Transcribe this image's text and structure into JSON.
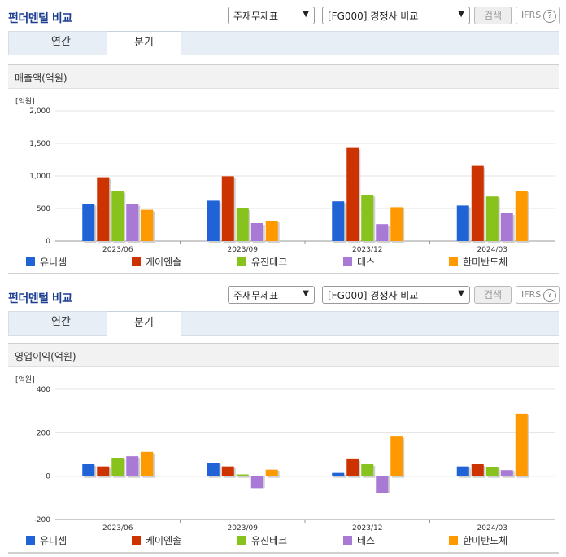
{
  "panels": [
    {
      "title": "펀더멘털 비교",
      "select1": "주재무제표",
      "select2": "[FG000] 경쟁사 비교",
      "search_label": "검색",
      "ifrs_label": "IFRS",
      "ifrs_help": "?",
      "tabs": [
        {
          "label": "연간",
          "active": false
        },
        {
          "label": "분기",
          "active": true
        }
      ],
      "metric_label": "매출액(억원)",
      "unit_label": "[억원]",
      "chart_data": {
        "type": "bar",
        "title": "매출액(억원)",
        "ylabel": "[억원]",
        "categories": [
          "2023/06",
          "2023/09",
          "2023/12",
          "2024/03"
        ],
        "ylim": [
          0,
          2000
        ],
        "yticks": [
          0,
          500,
          1000,
          1500,
          2000
        ],
        "ytick_labels": [
          "0",
          "500",
          "1,000",
          "1,500",
          "2,000"
        ],
        "grid": true,
        "legend_position": "bottom",
        "series": [
          {
            "name": "유니셈",
            "color": "#1f63d6",
            "values": [
              570,
              620,
              610,
              545
            ]
          },
          {
            "name": "케이엔솔",
            "color": "#cc3300",
            "values": [
              980,
              995,
              1430,
              1155
            ]
          },
          {
            "name": "유진테크",
            "color": "#88c21c",
            "values": [
              770,
              500,
              710,
              685
            ]
          },
          {
            "name": "테스",
            "color": "#a87ad6",
            "values": [
              570,
              275,
              260,
              425
            ]
          },
          {
            "name": "한미반도체",
            "color": "#ff9900",
            "values": [
              480,
              310,
              520,
              775
            ]
          }
        ]
      }
    },
    {
      "title": "펀더멘털 비교",
      "select1": "주재무제표",
      "select2": "[FG000] 경쟁사 비교",
      "search_label": "검색",
      "ifrs_label": "IFRS",
      "ifrs_help": "?",
      "tabs": [
        {
          "label": "연간",
          "active": false
        },
        {
          "label": "분기",
          "active": true
        }
      ],
      "metric_label": "영업이익(억원)",
      "unit_label": "[억원]",
      "chart_data": {
        "type": "bar",
        "title": "영업이익(억원)",
        "ylabel": "[억원]",
        "categories": [
          "2023/06",
          "2023/09",
          "2023/12",
          "2024/03"
        ],
        "ylim": [
          -200,
          400
        ],
        "yticks": [
          -200,
          0,
          200,
          400
        ],
        "ytick_labels": [
          "-200",
          "0",
          "200",
          "400"
        ],
        "grid": true,
        "legend_position": "bottom",
        "series": [
          {
            "name": "유니셈",
            "color": "#1f63d6",
            "values": [
              55,
              62,
              15,
              45
            ]
          },
          {
            "name": "케이엔솔",
            "color": "#cc3300",
            "values": [
              45,
              45,
              78,
              55
            ]
          },
          {
            "name": "유진테크",
            "color": "#88c21c",
            "values": [
              85,
              8,
              55,
              42
            ]
          },
          {
            "name": "테스",
            "color": "#a87ad6",
            "values": [
              92,
              -55,
              -80,
              28
            ]
          },
          {
            "name": "한미반도체",
            "color": "#ff9900",
            "values": [
              112,
              30,
              182,
              288
            ]
          }
        ]
      }
    }
  ]
}
